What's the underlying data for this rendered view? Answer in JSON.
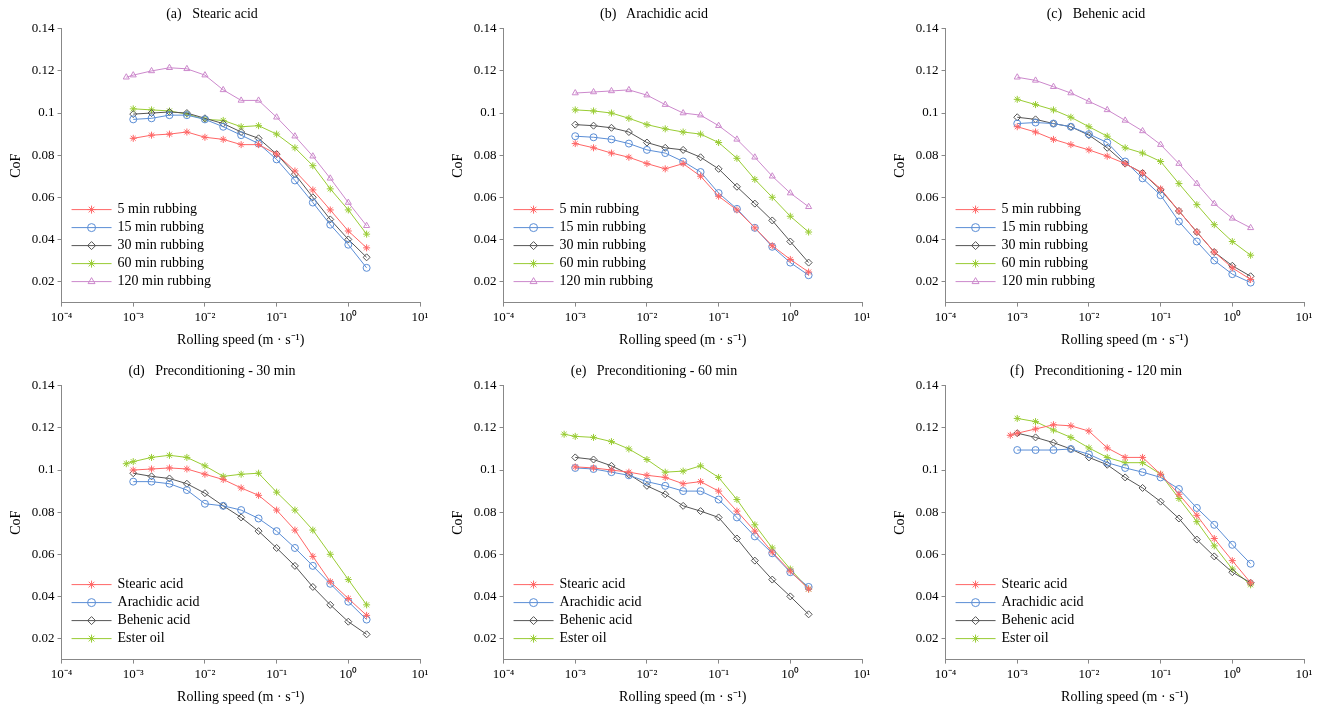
{
  "chart_data": [
    {
      "type": "line",
      "title": "(a)   Stearic acid",
      "xlabel": "Rolling speed (m · s⁻¹)",
      "ylabel": "CoF",
      "log": "x",
      "grid": false,
      "legend": "bottom left",
      "line_style": "solid",
      "xlim": [
        0.0001,
        10
      ],
      "ylim": [
        0.01,
        0.14
      ],
      "xticks": [
        {
          "value": 0.0001,
          "label": "10⁻⁴"
        },
        {
          "value": 0.001,
          "label": "10⁻³"
        },
        {
          "value": 0.01,
          "label": "10⁻²"
        },
        {
          "value": 0.1,
          "label": "10⁻¹"
        },
        {
          "value": 1,
          "label": "10⁰"
        },
        {
          "value": 10,
          "label": "10¹"
        }
      ],
      "yticks": [
        0.02,
        0.04,
        0.06,
        0.08,
        0.1,
        0.12,
        0.14
      ],
      "x": [
        0.0008,
        0.001,
        0.0018,
        0.0032,
        0.0056,
        0.01,
        0.018,
        0.032,
        0.056,
        0.1,
        0.18,
        0.32,
        0.56,
        1,
        1.8
      ],
      "series": [
        {
          "name": "5 min rubbing",
          "color": "#ff6666",
          "marker": "cross",
          "values": [
            null,
            0.088,
            0.0895,
            0.09,
            0.091,
            0.0885,
            0.0875,
            0.085,
            0.085,
            0.0805,
            0.0725,
            0.0635,
            0.054,
            0.044,
            0.036
          ]
        },
        {
          "name": "15 min rubbing",
          "color": "#5b8ed6",
          "marker": "circle",
          "values": [
            null,
            0.097,
            0.0975,
            0.099,
            0.099,
            0.097,
            0.0935,
            0.0895,
            0.0855,
            0.078,
            0.068,
            0.0575,
            0.047,
            0.0375,
            0.0265
          ]
        },
        {
          "name": "30 min rubbing",
          "color": "#555555",
          "marker": "diamond",
          "values": [
            null,
            0.0995,
            0.1,
            0.1005,
            0.1,
            0.0975,
            0.095,
            0.091,
            0.088,
            0.0805,
            0.071,
            0.06,
            0.0495,
            0.04,
            0.0315
          ]
        },
        {
          "name": "60 min rubbing",
          "color": "#99cc33",
          "marker": "cross",
          "values": [
            null,
            0.102,
            0.1015,
            0.101,
            0.0995,
            0.097,
            0.0965,
            0.0935,
            0.094,
            0.09,
            0.0835,
            0.075,
            0.064,
            0.054,
            0.0425
          ]
        },
        {
          "name": "120 min rubbing",
          "color": "#cc88cc",
          "marker": "triangle",
          "values": [
            0.117,
            0.118,
            0.12,
            0.1215,
            0.121,
            0.118,
            0.111,
            0.106,
            0.106,
            0.098,
            0.089,
            0.0795,
            0.069,
            0.0575,
            0.0465
          ]
        }
      ]
    },
    {
      "type": "line",
      "title": "(b)   Arachidic acid",
      "xlabel": "Rolling speed (m · s⁻¹)",
      "ylabel": "CoF",
      "log": "x",
      "grid": false,
      "legend": "bottom left",
      "line_style": "solid",
      "xlim": [
        0.0001,
        10
      ],
      "ylim": [
        0.01,
        0.14
      ],
      "xticks": [
        {
          "value": 0.0001,
          "label": "10⁻⁴"
        },
        {
          "value": 0.001,
          "label": "10⁻³"
        },
        {
          "value": 0.01,
          "label": "10⁻²"
        },
        {
          "value": 0.1,
          "label": "10⁻¹"
        },
        {
          "value": 1,
          "label": "10⁰"
        },
        {
          "value": 10,
          "label": "10¹"
        }
      ],
      "yticks": [
        0.02,
        0.04,
        0.06,
        0.08,
        0.1,
        0.12,
        0.14
      ],
      "x": [
        0.001,
        0.0018,
        0.0032,
        0.0056,
        0.01,
        0.018,
        0.032,
        0.056,
        0.1,
        0.18,
        0.32,
        0.56,
        1,
        1.8
      ],
      "series": [
        {
          "name": "5 min rubbing",
          "color": "#ff6666",
          "marker": "cross",
          "values": [
            0.0855,
            0.0835,
            0.081,
            0.079,
            0.076,
            0.0735,
            0.076,
            0.07,
            0.0605,
            0.054,
            0.0455,
            0.037,
            0.0305,
            0.0245
          ]
        },
        {
          "name": "15 min rubbing",
          "color": "#5b8ed6",
          "marker": "circle",
          "values": [
            0.089,
            0.0885,
            0.0875,
            0.0855,
            0.0825,
            0.081,
            0.077,
            0.072,
            0.062,
            0.0545,
            0.0455,
            0.0365,
            0.029,
            0.023
          ]
        },
        {
          "name": "30 min rubbing",
          "color": "#555555",
          "marker": "diamond",
          "values": [
            0.0945,
            0.094,
            0.093,
            0.091,
            0.086,
            0.0835,
            0.0825,
            0.079,
            0.0735,
            0.065,
            0.057,
            0.049,
            0.039,
            0.029
          ]
        },
        {
          "name": "60 min rubbing",
          "color": "#99cc33",
          "marker": "cross",
          "values": [
            0.1015,
            0.101,
            0.1,
            0.0975,
            0.0945,
            0.0925,
            0.091,
            0.09,
            0.086,
            0.0785,
            0.0685,
            0.06,
            0.051,
            0.0435
          ]
        },
        {
          "name": "120 min rubbing",
          "color": "#cc88cc",
          "marker": "triangle",
          "values": [
            0.1095,
            0.11,
            0.1105,
            0.111,
            0.1085,
            0.104,
            0.1,
            0.099,
            0.094,
            0.0875,
            0.079,
            0.07,
            0.062,
            0.0555
          ]
        }
      ]
    },
    {
      "type": "line",
      "title": "(c)   Behenic acid",
      "xlabel": "Rolling speed (m · s⁻¹)",
      "ylabel": "CoF",
      "log": "x",
      "grid": false,
      "legend": "bottom left",
      "line_style": "solid",
      "xlim": [
        0.0001,
        10
      ],
      "ylim": [
        0.01,
        0.14
      ],
      "xticks": [
        {
          "value": 0.0001,
          "label": "10⁻⁴"
        },
        {
          "value": 0.001,
          "label": "10⁻³"
        },
        {
          "value": 0.01,
          "label": "10⁻²"
        },
        {
          "value": 0.1,
          "label": "10⁻¹"
        },
        {
          "value": 1,
          "label": "10⁰"
        },
        {
          "value": 10,
          "label": "10¹"
        }
      ],
      "yticks": [
        0.02,
        0.04,
        0.06,
        0.08,
        0.1,
        0.12,
        0.14
      ],
      "x": [
        0.001,
        0.0018,
        0.0032,
        0.0056,
        0.01,
        0.018,
        0.032,
        0.056,
        0.1,
        0.18,
        0.32,
        0.56,
        1,
        1.8
      ],
      "series": [
        {
          "name": "5 min rubbing",
          "color": "#ff6666",
          "marker": "cross",
          "values": [
            0.0935,
            0.091,
            0.0875,
            0.085,
            0.0825,
            0.0795,
            0.076,
            0.0715,
            0.064,
            0.0535,
            0.0435,
            0.034,
            0.0265,
            0.021
          ]
        },
        {
          "name": "15 min rubbing",
          "color": "#5b8ed6",
          "marker": "circle",
          "values": [
            0.095,
            0.0955,
            0.095,
            0.0935,
            0.09,
            0.086,
            0.077,
            0.069,
            0.061,
            0.0485,
            0.039,
            0.03,
            0.0235,
            0.0195
          ]
        },
        {
          "name": "30 min rubbing",
          "color": "#555555",
          "marker": "diamond",
          "values": [
            0.098,
            0.097,
            0.095,
            0.0935,
            0.0895,
            0.0835,
            0.076,
            0.0715,
            0.0635,
            0.0535,
            0.0435,
            0.034,
            0.0275,
            0.0225
          ]
        },
        {
          "name": "60 min rubbing",
          "color": "#99cc33",
          "marker": "cross",
          "values": [
            0.1065,
            0.104,
            0.1015,
            0.098,
            0.0935,
            0.089,
            0.0835,
            0.081,
            0.077,
            0.0665,
            0.0565,
            0.047,
            0.039,
            0.0325
          ]
        },
        {
          "name": "120 min rubbing",
          "color": "#cc88cc",
          "marker": "triangle",
          "values": [
            0.117,
            0.1155,
            0.1125,
            0.1095,
            0.1055,
            0.1015,
            0.0965,
            0.0915,
            0.085,
            0.076,
            0.0665,
            0.057,
            0.05,
            0.0455
          ]
        }
      ]
    },
    {
      "type": "line",
      "title": "(d)   Preconditioning - 30 min",
      "xlabel": "Rolling speed (m · s⁻¹)",
      "ylabel": "CoF",
      "log": "x",
      "grid": false,
      "legend": "bottom left",
      "line_style": "solid",
      "xlim": [
        0.0001,
        10
      ],
      "ylim": [
        0.01,
        0.14
      ],
      "xticks": [
        {
          "value": 0.0001,
          "label": "10⁻⁴"
        },
        {
          "value": 0.001,
          "label": "10⁻³"
        },
        {
          "value": 0.01,
          "label": "10⁻²"
        },
        {
          "value": 0.1,
          "label": "10⁻¹"
        },
        {
          "value": 1,
          "label": "10⁰"
        },
        {
          "value": 10,
          "label": "10¹"
        }
      ],
      "yticks": [
        0.02,
        0.04,
        0.06,
        0.08,
        0.1,
        0.12,
        0.14
      ],
      "x": [
        0.0008,
        0.001,
        0.0018,
        0.0032,
        0.0056,
        0.01,
        0.018,
        0.032,
        0.056,
        0.1,
        0.18,
        0.32,
        0.56,
        1,
        1.8
      ],
      "series": [
        {
          "name": "Stearic acid",
          "color": "#ff6666",
          "marker": "cross",
          "values": [
            null,
            0.1,
            0.1005,
            0.101,
            0.1005,
            0.098,
            0.0955,
            0.0915,
            0.088,
            0.081,
            0.0715,
            0.059,
            0.047,
            0.039,
            0.031
          ]
        },
        {
          "name": "Arachidic acid",
          "color": "#5b8ed6",
          "marker": "circle",
          "values": [
            null,
            0.0945,
            0.0945,
            0.0935,
            0.0905,
            0.084,
            0.083,
            0.081,
            0.077,
            0.071,
            0.063,
            0.0545,
            0.046,
            0.0375,
            0.029
          ]
        },
        {
          "name": "Behenic acid",
          "color": "#555555",
          "marker": "diamond",
          "values": [
            null,
            0.0985,
            0.097,
            0.096,
            0.0935,
            0.089,
            0.083,
            0.0775,
            0.071,
            0.063,
            0.0545,
            0.0445,
            0.036,
            0.028,
            0.022
          ]
        },
        {
          "name": "Ester oil",
          "color": "#99cc33",
          "marker": "cross",
          "values": [
            0.103,
            0.104,
            0.106,
            0.107,
            0.106,
            0.102,
            0.097,
            0.098,
            0.0985,
            0.0895,
            0.081,
            0.0715,
            0.06,
            0.048,
            0.036
          ]
        }
      ]
    },
    {
      "type": "line",
      "title": "(e)   Preconditioning - 60 min",
      "xlabel": "Rolling speed (m · s⁻¹)",
      "ylabel": "CoF",
      "log": "x",
      "grid": false,
      "legend": "bottom left",
      "line_style": "solid",
      "xlim": [
        0.0001,
        10
      ],
      "ylim": [
        0.01,
        0.14
      ],
      "xticks": [
        {
          "value": 0.0001,
          "label": "10⁻⁴"
        },
        {
          "value": 0.001,
          "label": "10⁻³"
        },
        {
          "value": 0.01,
          "label": "10⁻²"
        },
        {
          "value": 0.1,
          "label": "10⁻¹"
        },
        {
          "value": 1,
          "label": "10⁰"
        },
        {
          "value": 10,
          "label": "10¹"
        }
      ],
      "yticks": [
        0.02,
        0.04,
        0.06,
        0.08,
        0.1,
        0.12,
        0.14
      ],
      "x": [
        0.0007,
        0.001,
        0.0018,
        0.0032,
        0.0056,
        0.01,
        0.018,
        0.032,
        0.056,
        0.1,
        0.18,
        0.32,
        0.56,
        1,
        1.8
      ],
      "series": [
        {
          "name": "Stearic acid",
          "color": "#ff6666",
          "marker": "cross",
          "values": [
            null,
            0.1015,
            0.101,
            0.1,
            0.099,
            0.0975,
            0.0965,
            0.0935,
            0.0945,
            0.09,
            0.0805,
            0.071,
            0.061,
            0.052,
            0.0435
          ]
        },
        {
          "name": "Arachidic acid",
          "color": "#5b8ed6",
          "marker": "circle",
          "values": [
            null,
            0.101,
            0.1005,
            0.099,
            0.0975,
            0.0945,
            0.0925,
            0.09,
            0.09,
            0.086,
            0.0775,
            0.0685,
            0.0605,
            0.0515,
            0.0445
          ]
        },
        {
          "name": "Behenic acid",
          "color": "#555555",
          "marker": "diamond",
          "values": [
            null,
            0.106,
            0.105,
            0.102,
            0.098,
            0.0925,
            0.0885,
            0.083,
            0.0805,
            0.0775,
            0.0675,
            0.057,
            0.048,
            0.04,
            0.0315
          ]
        },
        {
          "name": "Ester oil",
          "color": "#99cc33",
          "marker": "cross",
          "values": [
            0.117,
            0.116,
            0.1155,
            0.1135,
            0.11,
            0.105,
            0.099,
            0.0995,
            0.102,
            0.0965,
            0.086,
            0.074,
            0.063,
            0.053,
            0.0435
          ]
        }
      ]
    },
    {
      "type": "line",
      "title": "(f)   Preconditioning - 120 min",
      "xlabel": "Rolling speed (m · s⁻¹)",
      "ylabel": "CoF",
      "log": "x",
      "grid": false,
      "legend": "bottom left",
      "line_style": "solid",
      "xlim": [
        0.0001,
        10
      ],
      "ylim": [
        0.01,
        0.14
      ],
      "xticks": [
        {
          "value": 0.0001,
          "label": "10⁻⁴"
        },
        {
          "value": 0.001,
          "label": "10⁻³"
        },
        {
          "value": 0.01,
          "label": "10⁻²"
        },
        {
          "value": 0.1,
          "label": "10⁻¹"
        },
        {
          "value": 1,
          "label": "10⁰"
        },
        {
          "value": 10,
          "label": "10¹"
        }
      ],
      "yticks": [
        0.02,
        0.04,
        0.06,
        0.08,
        0.1,
        0.12,
        0.14
      ],
      "x": [
        0.0008,
        0.001,
        0.0018,
        0.0032,
        0.0056,
        0.01,
        0.018,
        0.032,
        0.056,
        0.1,
        0.18,
        0.32,
        0.56,
        1,
        1.8
      ],
      "series": [
        {
          "name": "Stearic acid",
          "color": "#ff6666",
          "marker": "cross",
          "values": [
            0.1165,
            0.1175,
            0.1195,
            0.1215,
            0.121,
            0.1185,
            0.1105,
            0.106,
            0.106,
            0.098,
            0.0885,
            0.0785,
            0.0675,
            0.057,
            0.0465
          ]
        },
        {
          "name": "Arachidic acid",
          "color": "#5b8ed6",
          "marker": "circle",
          "values": [
            null,
            0.1095,
            0.1095,
            0.1095,
            0.11,
            0.1075,
            0.1035,
            0.101,
            0.099,
            0.0965,
            0.091,
            0.082,
            0.074,
            0.0645,
            0.0555
          ]
        },
        {
          "name": "Behenic acid",
          "color": "#555555",
          "marker": "diamond",
          "values": [
            null,
            0.1175,
            0.1155,
            0.113,
            0.11,
            0.106,
            0.1025,
            0.0965,
            0.0915,
            0.085,
            0.077,
            0.067,
            0.059,
            0.0515,
            0.0465
          ]
        },
        {
          "name": "Ester oil",
          "color": "#99cc33",
          "marker": "cross",
          "values": [
            null,
            0.1245,
            0.123,
            0.119,
            0.1155,
            0.1105,
            0.106,
            0.1035,
            0.1035,
            0.098,
            0.0865,
            0.0755,
            0.064,
            0.053,
            0.0455
          ]
        }
      ]
    }
  ]
}
